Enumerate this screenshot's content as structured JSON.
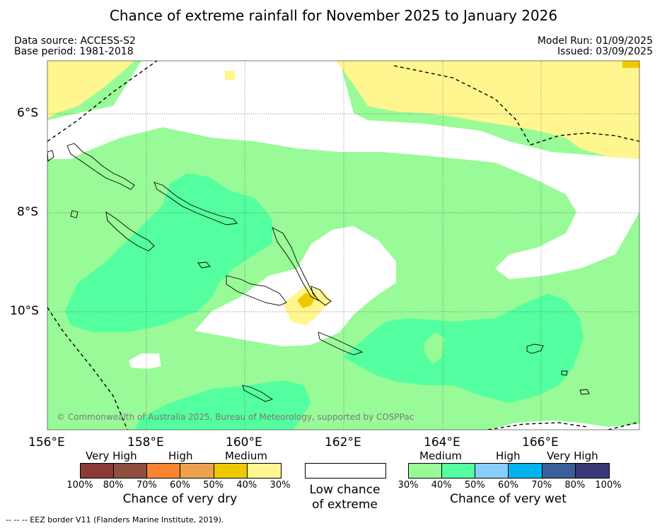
{
  "title": "Chance of extreme rainfall for November 2025 to January 2026",
  "meta": {
    "data_source": "Data source: ACCESS-S2",
    "base_period": "Base period: 1981-2018",
    "model_run": "Model Run: 01/09/2025",
    "issued": "Issued: 03/09/2025"
  },
  "axes": {
    "x_ticks": [
      "156°E",
      "158°E",
      "160°E",
      "162°E",
      "164°E",
      "166°E"
    ],
    "y_ticks": [
      "6°S",
      "8°S",
      "10°S"
    ]
  },
  "copyright": "© Commonwealth of Australia 2025, Bureau of Meteorology, supported by COSPPac",
  "legend": {
    "dry": {
      "caption": "Chance of very dry",
      "groups": [
        "Very High",
        "High",
        "Medium"
      ],
      "ticks": [
        "100%",
        "80%",
        "70%",
        "60%",
        "50%",
        "40%",
        "30%"
      ],
      "colors": [
        "#8b3a36",
        "#8f4f3e",
        "#fb8431",
        "#eda04e",
        "#eec900",
        "#fff68f"
      ]
    },
    "neutral": {
      "caption_line1": "Low chance",
      "caption_line2": "of extreme",
      "color": "#ffffff"
    },
    "wet": {
      "caption": "Chance of very wet",
      "groups": [
        "Medium",
        "High",
        "Very High"
      ],
      "ticks": [
        "30%",
        "40%",
        "50%",
        "60%",
        "70%",
        "80%",
        "100%"
      ],
      "colors": [
        "#98fb98",
        "#54ff9f",
        "#87cefa",
        "#00b2ee",
        "#3a5f9b",
        "#3b3975"
      ]
    }
  },
  "footer": "--  --  -- EEZ border V11 (Flanders Marine Institute, 2019)."
}
